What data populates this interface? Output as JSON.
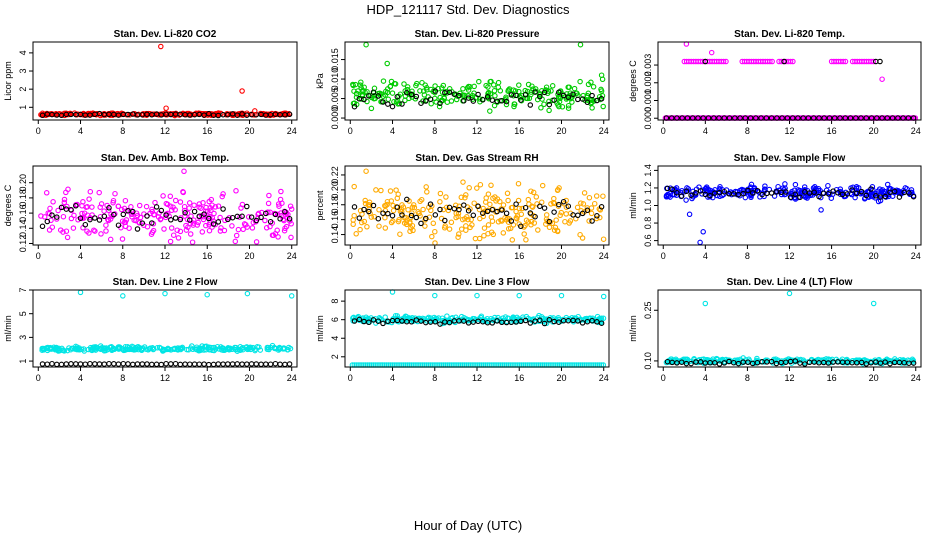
{
  "figure": {
    "title": "HDP_121117  Std. Dev. Diagnostics",
    "xlabel": "Hour of Day (UTC)"
  },
  "chart_data": [
    {
      "type": "scatter",
      "title": "Stan. Dev. Li-820 CO2",
      "ylabel": "Licor ppm",
      "color": "#ff0000",
      "xlim": [
        -0.5,
        24.5
      ],
      "xticks": [
        0,
        4,
        8,
        12,
        16,
        20,
        24
      ],
      "ylim": [
        0.3,
        4.6
      ],
      "yticks": [
        1,
        2,
        3,
        4
      ],
      "ytick_labels": [
        "1",
        "2",
        "3",
        "4"
      ],
      "series": {
        "color_band": {
          "center": 0.62,
          "spread": 0.09
        },
        "black_band": {
          "center": 0.6,
          "spread": 0.06
        },
        "outliers": [
          [
            11.6,
            4.35
          ],
          [
            12.1,
            0.95
          ],
          [
            19.3,
            1.9
          ],
          [
            20.5,
            0.8
          ]
        ]
      }
    },
    {
      "type": "scatter",
      "title": "Stan. Dev. Li-820 Pressure",
      "ylabel": "kPa",
      "color": "#00cc00",
      "xlim": [
        -0.5,
        24.5
      ],
      "xticks": [
        0,
        4,
        8,
        12,
        16,
        20,
        24
      ],
      "ylim": [
        -0.0005,
        0.0195
      ],
      "yticks": [
        0,
        0.005,
        0.01,
        0.015
      ],
      "ytick_labels": [
        "0.000",
        "0.005",
        "0.010",
        "0.015"
      ],
      "series": {
        "color_band": {
          "center": 0.006,
          "spread": 0.005
        },
        "black_band": {
          "center": 0.005,
          "spread": 0.003
        },
        "outliers": [
          [
            1.5,
            0.0188
          ],
          [
            21.8,
            0.0188
          ],
          [
            3.5,
            0.014
          ],
          [
            23.8,
            0.011
          ]
        ]
      }
    },
    {
      "type": "scatter",
      "title": "Stan. Dev. Li-820 Temp.",
      "ylabel": "degrees C",
      "color": "#ff00ff",
      "xlim": [
        -0.5,
        24.5
      ],
      "xticks": [
        0,
        4,
        8,
        12,
        16,
        20,
        24
      ],
      "ylim": [
        -0.0001,
        0.0043
      ],
      "yticks": [
        0,
        0.001,
        0.002,
        0.003
      ],
      "ytick_labels": [
        "0.000",
        "0.001",
        "0.002",
        "0.003"
      ],
      "series": {
        "color_band": {
          "levels": [
            0,
            0.0032
          ],
          "upper_ranges": [
            [
              2,
              6
            ],
            [
              7.5,
              10.5
            ],
            [
              11,
              12.5
            ],
            [
              16,
              17.5
            ],
            [
              18,
              20
            ]
          ]
        },
        "outliers": [
          [
            2.2,
            0.0043
          ],
          [
            4.6,
            0.0037
          ],
          [
            20.8,
            0.0022
          ]
        ]
      }
    },
    {
      "type": "scatter",
      "title": "Stan. Dev. Amb. Box Temp.",
      "ylabel": "degrees C",
      "color": "#ff00ff",
      "xlim": [
        -0.5,
        24.5
      ],
      "xticks": [
        0,
        4,
        8,
        12,
        16,
        20,
        24
      ],
      "ylim": [
        0.118,
        0.222
      ],
      "yticks": [
        0.12,
        0.14,
        0.16,
        0.18,
        0.2
      ],
      "ytick_labels": [
        "0.12",
        "0.14",
        "0.16",
        "0.18",
        "0.20"
      ],
      "series": {
        "color_band": {
          "center": 0.155,
          "spread": 0.045
        },
        "black_band": {
          "center": 0.155,
          "spread": 0.02
        },
        "outliers": [
          [
            13.8,
            0.215
          ]
        ]
      }
    },
    {
      "type": "scatter",
      "title": "Stan. Dev. Gas Stream RH",
      "ylabel": "percent",
      "color": "#ffaa00",
      "xlim": [
        -0.5,
        24.5
      ],
      "xticks": [
        0,
        4,
        8,
        12,
        16,
        20,
        24
      ],
      "ylim": [
        0.126,
        0.232
      ],
      "yticks": [
        0.14,
        0.16,
        0.18,
        0.2,
        0.22
      ],
      "ytick_labels": [
        "0.14",
        "0.16",
        "0.18",
        "0.20",
        "0.22"
      ],
      "series": {
        "color_band": {
          "center": 0.17,
          "spread": 0.05
        },
        "black_band": {
          "center": 0.17,
          "spread": 0.025
        },
        "outliers": [
          [
            1.5,
            0.225
          ]
        ]
      }
    },
    {
      "type": "scatter",
      "title": "Stan. Dev. Sample Flow",
      "ylabel": "ml/min",
      "color": "#0000ff",
      "xlim": [
        -0.5,
        24.5
      ],
      "xticks": [
        0,
        4,
        8,
        12,
        16,
        20,
        24
      ],
      "ylim": [
        0.55,
        1.45
      ],
      "yticks": [
        0.6,
        0.8,
        1.0,
        1.2,
        1.4
      ],
      "ytick_labels": [
        "0.6",
        "0.8",
        "1.0",
        "1.2",
        "1.4"
      ],
      "series": {
        "color_band": {
          "center": 1.15,
          "spread": 0.12
        },
        "black_band": {
          "center": 1.14,
          "spread": 0.06
        },
        "outliers": [
          [
            3.5,
            0.58
          ],
          [
            3.8,
            0.7
          ],
          [
            2.5,
            0.9
          ],
          [
            15,
            0.95
          ]
        ]
      }
    },
    {
      "type": "scatter",
      "title": "Stan. Dev. Line 2 Flow",
      "ylabel": "ml/min",
      "color": "#00e5e5",
      "xlim": [
        -0.5,
        24.5
      ],
      "xticks": [
        0,
        4,
        8,
        12,
        16,
        20,
        24
      ],
      "ylim": [
        0.5,
        7.0
      ],
      "yticks": [
        1,
        3,
        5,
        7
      ],
      "ytick_labels": [
        "1",
        "3",
        "5",
        "7"
      ],
      "series": {
        "color_band": {
          "center": 2.05,
          "spread": 0.3
        },
        "black_band": {
          "center": 0.75,
          "spread": 0.06
        },
        "outliers": [
          [
            4,
            6.8
          ],
          [
            8,
            6.5
          ],
          [
            12,
            6.7
          ],
          [
            16,
            6.6
          ],
          [
            19.8,
            6.7
          ],
          [
            24,
            6.5
          ]
        ]
      }
    },
    {
      "type": "scatter",
      "title": "Stan. Dev. Line 3 Flow",
      "ylabel": "ml/min",
      "color": "#00e5e5",
      "xlim": [
        -0.5,
        24.5
      ],
      "xticks": [
        0,
        4,
        8,
        12,
        16,
        20,
        24
      ],
      "ylim": [
        0.9,
        9.2
      ],
      "yticks": [
        2,
        4,
        6,
        8
      ],
      "ytick_labels": [
        "2",
        "4",
        "6",
        "8"
      ],
      "series": {
        "color_band": {
          "center": 6.0,
          "spread": 0.5,
          "lower": 1.0
        },
        "black_band": {
          "center": 5.8,
          "spread": 0.3
        },
        "outliers": [
          [
            4,
            9.0
          ],
          [
            8,
            8.6
          ],
          [
            12,
            8.6
          ],
          [
            16,
            8.6
          ],
          [
            20,
            8.6
          ],
          [
            24,
            8.5
          ]
        ]
      }
    },
    {
      "type": "scatter",
      "title": "Stan. Dev. Line 4 (LT) Flow",
      "ylabel": "ml/min",
      "color": "#00e5e5",
      "xlim": [
        -0.5,
        24.5
      ],
      "xticks": [
        0,
        4,
        8,
        12,
        16,
        20,
        24
      ],
      "ylim": [
        0.082,
        0.31
      ],
      "yticks": [
        0.1,
        0.25
      ],
      "ytick_labels": [
        "0.10",
        "0.25"
      ],
      "series": {
        "color_band": {
          "center": 0.1,
          "spread": 0.01
        },
        "black_band": {
          "center": 0.095,
          "spread": 0.006
        },
        "outliers": [
          [
            4,
            0.27
          ],
          [
            12,
            0.3
          ],
          [
            20,
            0.27
          ]
        ]
      }
    }
  ]
}
